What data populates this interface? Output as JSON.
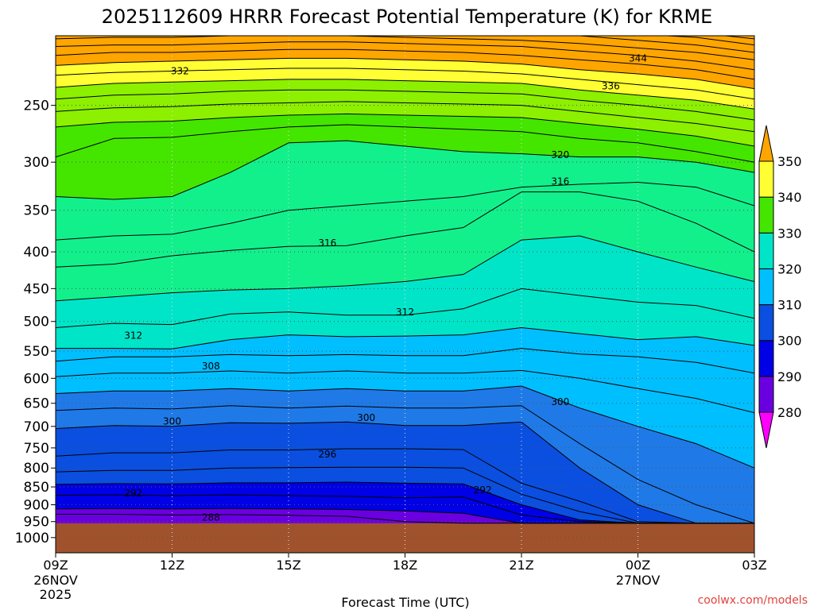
{
  "title": "2025112609 HRRR Forecast Potential Temperature (K) for KRME",
  "xlabel": "Forecast Time (UTC)",
  "credit": "coolwx.com/models",
  "colors": {
    "below_ground": "#a0522d",
    "levels": [
      "#ff00ff",
      "#8a00e6",
      "#6a00e0",
      "#0000e6",
      "#0a4fe0",
      "#1f7ae8",
      "#00bfff",
      "#00e5c8",
      "#12f08c",
      "#44e600",
      "#8cf000",
      "#ffff33",
      "#ffa500"
    ]
  },
  "chart_data": {
    "type": "heatmap",
    "title": "2025112609 HRRR Forecast Potential Temperature (K) for KRME",
    "xlabel": "Forecast Time (UTC)",
    "ylabel": "",
    "x_ticks": [
      {
        "hour": 9,
        "label": "09Z",
        "sub1": "26NOV",
        "sub2": "2025"
      },
      {
        "hour": 12,
        "label": "12Z",
        "sub1": "",
        "sub2": ""
      },
      {
        "hour": 15,
        "label": "15Z",
        "sub1": "",
        "sub2": ""
      },
      {
        "hour": 18,
        "label": "18Z",
        "sub1": "",
        "sub2": ""
      },
      {
        "hour": 21,
        "label": "21Z",
        "sub1": "",
        "sub2": ""
      },
      {
        "hour": 24,
        "label": "00Z",
        "sub1": "27NOV",
        "sub2": ""
      },
      {
        "hour": 27,
        "label": "03Z",
        "sub1": "",
        "sub2": ""
      }
    ],
    "xlim_hours": [
      9,
      27
    ],
    "y_ticks": [
      250,
      300,
      350,
      400,
      450,
      500,
      550,
      600,
      650,
      700,
      750,
      800,
      850,
      900,
      950,
      1000
    ],
    "ylim_hpa": [
      200,
      1050
    ],
    "y_scale": "log-pressure",
    "grid": true,
    "colorbar": {
      "labels": [
        280,
        290,
        300,
        310,
        320,
        330,
        340,
        350
      ],
      "bounds": [
        280,
        290,
        300,
        310,
        320,
        330,
        340,
        350
      ],
      "extend": "both"
    },
    "surface_pressure_hpa": 955,
    "series": [
      {
        "value": 288,
        "pressure_hpa": [
          928,
          928,
          930,
          929,
          931,
          934,
          950,
          955,
          955,
          955,
          955,
          955,
          955
        ]
      },
      {
        "value": 290,
        "pressure_hpa": [
          912,
          911,
          912,
          911,
          912,
          914,
          918,
          925,
          955,
          955,
          955,
          955,
          955
        ]
      },
      {
        "value": 292,
        "pressure_hpa": [
          873,
          872,
          874,
          872,
          874,
          876,
          880,
          878,
          930,
          950,
          955,
          955,
          955
        ]
      },
      {
        "value": 294,
        "pressure_hpa": [
          843,
          841,
          842,
          839,
          839,
          837,
          840,
          842,
          900,
          945,
          955,
          955,
          955
        ]
      },
      {
        "value": 296,
        "pressure_hpa": [
          810,
          806,
          806,
          800,
          799,
          798,
          798,
          800,
          870,
          920,
          955,
          955,
          955
        ]
      },
      {
        "value": 298,
        "pressure_hpa": [
          770,
          762,
          762,
          755,
          755,
          752,
          752,
          754,
          840,
          890,
          950,
          955,
          955
        ]
      },
      {
        "value": 300,
        "pressure_hpa": [
          705,
          698,
          700,
          692,
          693,
          690,
          698,
          698,
          690,
          800,
          900,
          955,
          955
        ]
      },
      {
        "value": 302,
        "pressure_hpa": [
          665,
          660,
          662,
          655,
          660,
          656,
          660,
          660,
          655,
          740,
          830,
          900,
          955
        ]
      },
      {
        "value": 304,
        "pressure_hpa": [
          630,
          625,
          625,
          620,
          625,
          620,
          625,
          625,
          615,
          660,
          700,
          740,
          800
        ]
      },
      {
        "value": 306,
        "pressure_hpa": [
          597,
          590,
          590,
          586,
          590,
          586,
          590,
          590,
          585,
          600,
          620,
          640,
          670
        ]
      },
      {
        "value": 308,
        "pressure_hpa": [
          568,
          560,
          560,
          556,
          558,
          556,
          558,
          558,
          545,
          555,
          560,
          570,
          590
        ]
      },
      {
        "value": 310,
        "pressure_hpa": [
          545,
          545,
          546,
          530,
          522,
          525,
          524,
          522,
          510,
          520,
          530,
          525,
          540
        ]
      },
      {
        "value": 312,
        "pressure_hpa": [
          510,
          503,
          505,
          488,
          485,
          490,
          490,
          480,
          450,
          460,
          470,
          475,
          495
        ]
      },
      {
        "value": 314,
        "pressure_hpa": [
          468,
          462,
          456,
          452,
          450,
          446,
          440,
          430,
          385,
          380,
          400,
          420,
          440
        ]
      },
      {
        "value": 316,
        "pressure_hpa": [
          420,
          416,
          405,
          398,
          393,
          392,
          380,
          370,
          330,
          330,
          340,
          365,
          400
        ]
      },
      {
        "value": 318,
        "pressure_hpa": [
          385,
          380,
          378,
          365,
          350,
          345,
          340,
          335,
          325,
          322,
          320,
          325,
          345
        ]
      },
      {
        "value": 320,
        "pressure_hpa": [
          335,
          338,
          335,
          310,
          282,
          280,
          285,
          290,
          292,
          295,
          295,
          300,
          310
        ]
      },
      {
        "value": 322,
        "pressure_hpa": [
          295,
          278,
          277,
          272,
          268,
          266,
          268,
          270,
          272,
          278,
          282,
          290,
          300
        ]
      },
      {
        "value": 324,
        "pressure_hpa": [
          268,
          264,
          263,
          260,
          258,
          257,
          258,
          259,
          260,
          265,
          270,
          276,
          285
        ]
      },
      {
        "value": 326,
        "pressure_hpa": [
          255,
          252,
          251,
          249,
          248,
          247,
          248,
          249,
          250,
          255,
          260,
          265,
          272
        ]
      },
      {
        "value": 328,
        "pressure_hpa": [
          245,
          242,
          241,
          239,
          238,
          238,
          239,
          240,
          241,
          246,
          250,
          255,
          262
        ]
      },
      {
        "value": 330,
        "pressure_hpa": [
          236,
          233,
          232,
          231,
          230,
          230,
          231,
          232,
          233,
          238,
          242,
          246,
          253
        ]
      },
      {
        "value": 332,
        "pressure_hpa": [
          227,
          225,
          224,
          223,
          222,
          222,
          223,
          224,
          226,
          230,
          234,
          238,
          245
        ]
      },
      {
        "value": 334,
        "pressure_hpa": [
          220,
          218,
          217,
          216,
          215,
          215,
          216,
          217,
          219,
          223,
          226,
          230,
          237
        ]
      },
      {
        "value": 336,
        "pressure_hpa": [
          213,
          211,
          211,
          210,
          209,
          209,
          210,
          211,
          213,
          216,
          219,
          223,
          230
        ]
      },
      {
        "value": 338,
        "pressure_hpa": [
          207,
          206,
          206,
          205,
          204,
          204,
          205,
          206,
          207,
          210,
          213,
          217,
          223
        ]
      },
      {
        "value": 340,
        "pressure_hpa": [
          202,
          201,
          201,
          200,
          200,
          200,
          201,
          202,
          203,
          205,
          208,
          211,
          216
        ]
      },
      {
        "value": 342,
        "pressure_hpa": [
          198,
          197,
          197,
          197,
          197,
          197,
          197,
          198,
          199,
          200,
          203,
          206,
          211
        ]
      },
      {
        "value": 344,
        "pressure_hpa": [
          195,
          195,
          195,
          195,
          195,
          195,
          195,
          195,
          196,
          197,
          199,
          201,
          206
        ]
      },
      {
        "value": 346,
        "pressure_hpa": [
          195,
          195,
          195,
          195,
          195,
          195,
          195,
          195,
          195,
          195,
          196,
          198,
          202
        ]
      }
    ],
    "series_x_hours": [
      9,
      10.5,
      12,
      13.5,
      15,
      16.5,
      18,
      19.5,
      21,
      22.5,
      24,
      25.5,
      27
    ],
    "contour_labels": [
      {
        "text": "332",
        "hour": 12.2,
        "pressure_hpa": 224
      },
      {
        "text": "344",
        "hour": 24.0,
        "pressure_hpa": 215
      },
      {
        "text": "336",
        "hour": 23.3,
        "pressure_hpa": 235
      },
      {
        "text": "320",
        "hour": 22.0,
        "pressure_hpa": 293
      },
      {
        "text": "316",
        "hour": 22.0,
        "pressure_hpa": 319
      },
      {
        "text": "316",
        "hour": 16.0,
        "pressure_hpa": 389
      },
      {
        "text": "312",
        "hour": 18.0,
        "pressure_hpa": 485
      },
      {
        "text": "312",
        "hour": 11.0,
        "pressure_hpa": 523
      },
      {
        "text": "308",
        "hour": 13.0,
        "pressure_hpa": 577
      },
      {
        "text": "300",
        "hour": 22.0,
        "pressure_hpa": 647
      },
      {
        "text": "300",
        "hour": 12.0,
        "pressure_hpa": 689
      },
      {
        "text": "300",
        "hour": 17.0,
        "pressure_hpa": 681
      },
      {
        "text": "296",
        "hour": 16.0,
        "pressure_hpa": 766
      },
      {
        "text": "292",
        "hour": 11.0,
        "pressure_hpa": 867
      },
      {
        "text": "292",
        "hour": 20.0,
        "pressure_hpa": 859
      },
      {
        "text": "288",
        "hour": 13.0,
        "pressure_hpa": 937
      }
    ]
  }
}
